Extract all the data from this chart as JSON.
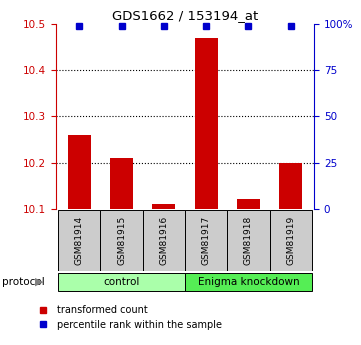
{
  "title": "GDS1662 / 153194_at",
  "samples": [
    "GSM81914",
    "GSM81915",
    "GSM81916",
    "GSM81917",
    "GSM81918",
    "GSM81919"
  ],
  "red_values": [
    10.26,
    10.21,
    10.11,
    10.47,
    10.12,
    10.2
  ],
  "blue_values": [
    99,
    99,
    99,
    99,
    99,
    99
  ],
  "ylim_left": [
    10.1,
    10.5
  ],
  "ylim_right": [
    0,
    100
  ],
  "yticks_left": [
    10.1,
    10.2,
    10.3,
    10.4,
    10.5
  ],
  "yticks_right": [
    0,
    25,
    50,
    75,
    100
  ],
  "red_color": "#cc0000",
  "blue_color": "#0000cc",
  "bar_width": 0.55,
  "protocol_labels": [
    "control",
    "Enigma knockdown"
  ],
  "protocol_colors": [
    "#aaffaa",
    "#55ee55"
  ],
  "sample_box_color": "#cccccc",
  "legend_red": "transformed count",
  "legend_blue": "percentile rank within the sample",
  "base_value": 10.1,
  "grid_yticks": [
    10.2,
    10.3,
    10.4
  ]
}
